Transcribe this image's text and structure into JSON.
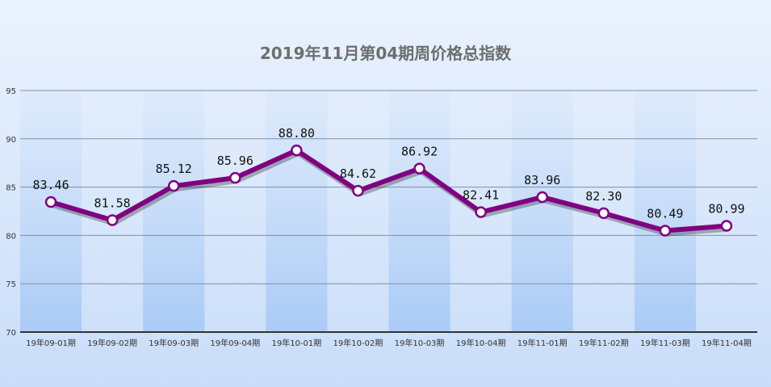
{
  "chart_data": {
    "type": "line",
    "title": "2019年11月第04期周价格总指数",
    "categories": [
      "19年09-01期",
      "19年09-02期",
      "19年09-03期",
      "19年09-04期",
      "19年10-01期",
      "19年10-02期",
      "19年10-03期",
      "19年10-04期",
      "19年11-01期",
      "19年11-02期",
      "19年11-03期",
      "19年11-04期"
    ],
    "series": [
      {
        "values": [
          83.46,
          81.58,
          85.12,
          85.96,
          88.8,
          84.62,
          86.92,
          82.41,
          83.96,
          82.3,
          80.49,
          80.99
        ]
      }
    ],
    "data_labels": [
      "83.46",
      "81.58",
      "85.12",
      "85.96",
      "88.80",
      "84.62",
      "86.92",
      "82.41",
      "83.96",
      "82.30",
      "80.49",
      "80.99"
    ],
    "ylim": [
      70,
      95
    ],
    "yticks": [
      70,
      75,
      80,
      85,
      90,
      95
    ],
    "xlabel": "",
    "ylabel": "",
    "grid": true,
    "line_color": "#800080",
    "marker_fill": "#ffffff",
    "band_color": "#a9cbf6"
  }
}
